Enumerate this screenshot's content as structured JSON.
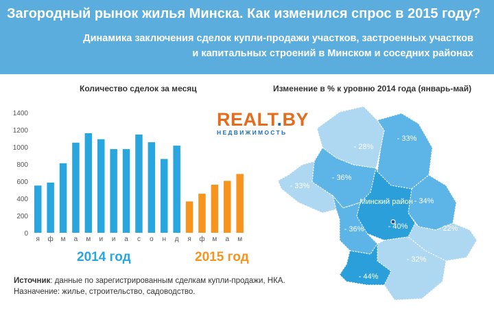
{
  "header": {
    "title": "Загородный рынок жилья Минска. Как изменился спрос в 2015 году?",
    "subtitle_line1": "Динамика заключения сделок купли-продажи участков, застроенных участков",
    "subtitle_line2": "и капитальных строений в Минском и соседних районах"
  },
  "logo": {
    "main": "REALT",
    "dot": ".",
    "main2": "BY",
    "tagline": "НЕДВИЖИМОСТЬ"
  },
  "year_labels": {
    "y2014": "2014 год",
    "y2015": "2015 год"
  },
  "colors": {
    "header": "#5aaddc",
    "bar2014": "#2aa6df",
    "bar2015": "#f7941d"
  },
  "chart_data": [
    {
      "type": "bar",
      "title": "Количество сделок за месяц",
      "categories": [
        "я",
        "ф",
        "м",
        "а",
        "м",
        "и",
        "и",
        "а",
        "с",
        "о",
        "н",
        "д",
        "я",
        "ф",
        "м",
        "а",
        "м"
      ],
      "series": [
        {
          "name": "2014 год",
          "values": [
            550,
            585,
            810,
            1050,
            1160,
            1090,
            975,
            975,
            1145,
            1055,
            860,
            1015,
            null,
            null,
            null,
            null,
            null
          ]
        },
        {
          "name": "2015 год",
          "values": [
            null,
            null,
            null,
            null,
            null,
            null,
            null,
            null,
            null,
            null,
            null,
            null,
            365,
            455,
            560,
            605,
            685
          ]
        }
      ],
      "yticks": [
        0,
        200,
        400,
        600,
        800,
        1000,
        1200,
        1400
      ],
      "ylim": [
        0,
        1400
      ],
      "grid": false
    },
    {
      "type": "map",
      "title": "Изменение в % к уровню 2014 года (январь-май)",
      "regions": [
        {
          "name": "",
          "value": "- 28%"
        },
        {
          "name": "",
          "value": "- 33%"
        },
        {
          "name": "",
          "value": "- 36%"
        },
        {
          "name": "",
          "value": "- 33%"
        },
        {
          "name": "",
          "value": "- 34%"
        },
        {
          "name": "Минский район",
          "value": "- 40%"
        },
        {
          "name": "",
          "value": "- 22%"
        },
        {
          "name": "",
          "value": "- 36%"
        },
        {
          "name": "",
          "value": "- 32%"
        },
        {
          "name": "",
          "value": "- 44%"
        }
      ]
    }
  ],
  "footer": {
    "source_label": "Источник",
    "source_text": ": данные по зарегистрированным сделкам купли-продажи, НКА.",
    "purpose_text": "Назначение: жилье, строительство, садоводство."
  }
}
